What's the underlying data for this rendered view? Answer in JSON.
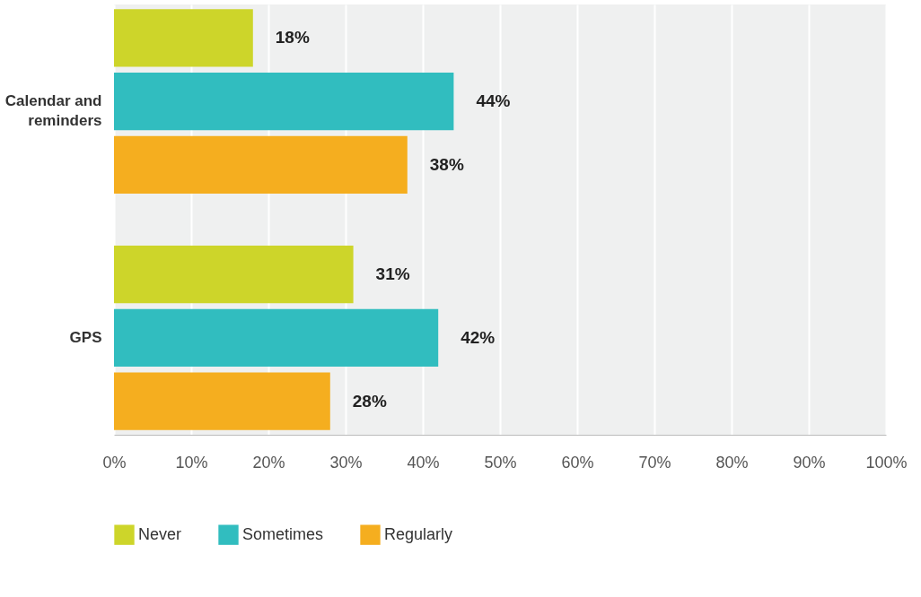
{
  "chart_data": {
    "type": "bar",
    "orientation": "horizontal",
    "categories": [
      "Calendar and reminders",
      "GPS"
    ],
    "series": [
      {
        "name": "Never",
        "color": "#cdd52a",
        "values": [
          18,
          31
        ]
      },
      {
        "name": "Sometimes",
        "color": "#31bdbf",
        "values": [
          44,
          42
        ]
      },
      {
        "name": "Regularly",
        "color": "#f5ae1f",
        "values": [
          38,
          28
        ]
      }
    ],
    "xlim": [
      0,
      100
    ],
    "xticks": [
      {
        "value": 0,
        "label": "0%"
      },
      {
        "value": 10,
        "label": "10%"
      },
      {
        "value": 20,
        "label": "20%"
      },
      {
        "value": 30,
        "label": "30%"
      },
      {
        "value": 40,
        "label": "40%"
      },
      {
        "value": 50,
        "label": "50%"
      },
      {
        "value": 60,
        "label": "60%"
      },
      {
        "value": 70,
        "label": "70%"
      },
      {
        "value": 80,
        "label": "80%"
      },
      {
        "value": 90,
        "label": "90%"
      },
      {
        "value": 100,
        "label": "100%"
      }
    ],
    "value_labels": [
      [
        "18%",
        "31%"
      ],
      [
        "44%",
        "42%"
      ],
      [
        "38%",
        "28%"
      ]
    ],
    "grid": "x",
    "legend": "bottom"
  }
}
